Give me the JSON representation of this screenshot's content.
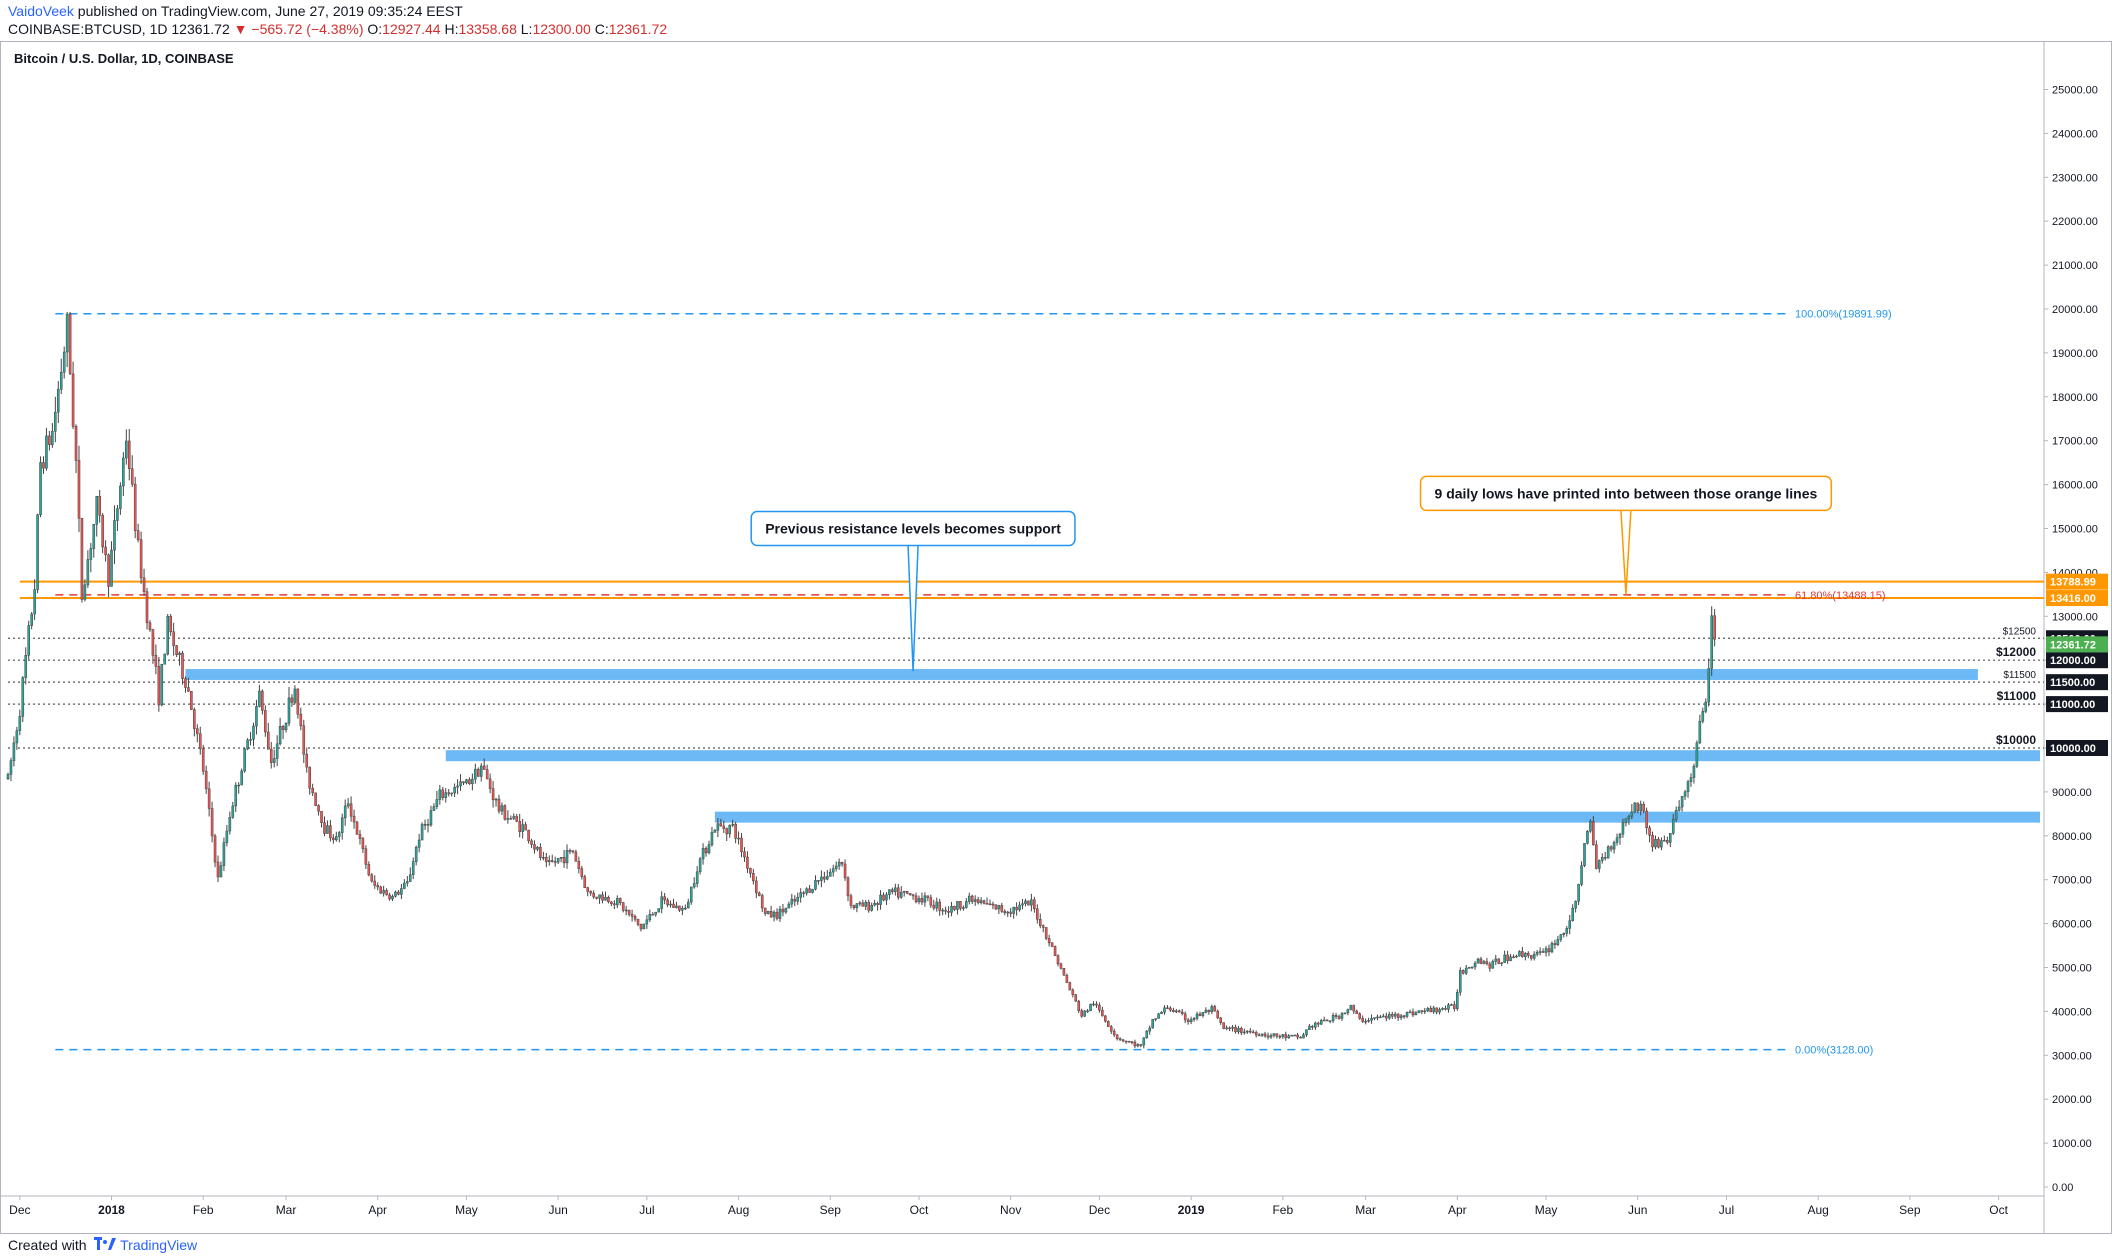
{
  "header": {
    "author": "VaidoVeek",
    "published_text": "published on TradingView.com, June 27, 2019 09:35:24 EEST",
    "symbol_line_prefix": "COINBASE:BTCUSD, 1D  12361.72",
    "change_text": "−565.72 (−4.38%)",
    "ohlc_o_label": "O:",
    "ohlc_o": "12927.44",
    "ohlc_h_label": "H:",
    "ohlc_h": "13358.68",
    "ohlc_l_label": "L:",
    "ohlc_l": "12300.00",
    "ohlc_c_label": "C:",
    "ohlc_c": "12361.72"
  },
  "footer": {
    "created_with": "Created with",
    "brand": "TradingView"
  },
  "colors": {
    "up": "#26a69a",
    "up_fill": "#26a69a",
    "down": "#ef5350",
    "fib": "#2196f3",
    "orange": "#ff9800",
    "zone": "#64b5f6",
    "red_dash": "#e53935",
    "green_price": "#4caf50"
  },
  "chart_data": {
    "type": "candlestick",
    "title": "Bitcoin / U.S. Dollar, 1D, COINBASE",
    "ylim": [
      0,
      25500
    ],
    "y_ticks": [
      0,
      1000,
      2000,
      3000,
      4000,
      5000,
      6000,
      7000,
      8000,
      9000,
      10000,
      11000,
      12000,
      13000,
      14000,
      15000,
      16000,
      17000,
      18000,
      19000,
      20000,
      21000,
      22000,
      23000,
      24000,
      25000
    ],
    "y_tick_format": "2dp",
    "x_range": [
      "2017-11-27",
      "2019-10-15"
    ],
    "x_ticks": [
      {
        "label": "Dec",
        "date": "2017-12-01",
        "bold": false
      },
      {
        "label": "2018",
        "date": "2018-01-01",
        "bold": true
      },
      {
        "label": "Feb",
        "date": "2018-02-01",
        "bold": false
      },
      {
        "label": "Mar",
        "date": "2018-03-01",
        "bold": false
      },
      {
        "label": "Apr",
        "date": "2018-04-01",
        "bold": false
      },
      {
        "label": "May",
        "date": "2018-05-01",
        "bold": false
      },
      {
        "label": "Jun",
        "date": "2018-06-01",
        "bold": false
      },
      {
        "label": "Jul",
        "date": "2018-07-01",
        "bold": false
      },
      {
        "label": "Aug",
        "date": "2018-08-01",
        "bold": false
      },
      {
        "label": "Sep",
        "date": "2018-09-01",
        "bold": false
      },
      {
        "label": "Oct",
        "date": "2018-10-01",
        "bold": false
      },
      {
        "label": "Nov",
        "date": "2018-11-01",
        "bold": false
      },
      {
        "label": "Dec",
        "date": "2018-12-01",
        "bold": false
      },
      {
        "label": "2019",
        "date": "2019-01-01",
        "bold": true
      },
      {
        "label": "Feb",
        "date": "2019-02-01",
        "bold": false
      },
      {
        "label": "Mar",
        "date": "2019-03-01",
        "bold": false
      },
      {
        "label": "Apr",
        "date": "2019-04-01",
        "bold": false
      },
      {
        "label": "May",
        "date": "2019-05-01",
        "bold": false
      },
      {
        "label": "Jun",
        "date": "2019-06-01",
        "bold": false
      },
      {
        "label": "Jul",
        "date": "2019-07-01",
        "bold": false
      },
      {
        "label": "Aug",
        "date": "2019-08-01",
        "bold": false
      },
      {
        "label": "Sep",
        "date": "2019-09-01",
        "bold": false
      },
      {
        "label": "Oct",
        "date": "2019-10-01",
        "bold": false
      }
    ],
    "price_path": [
      [
        "2017-11-27",
        9300
      ],
      [
        "2017-12-01",
        10900
      ],
      [
        "2017-12-06",
        13700
      ],
      [
        "2017-12-08",
        16500
      ],
      [
        "2017-12-12",
        17200
      ],
      [
        "2017-12-17",
        19600
      ],
      [
        "2017-12-20",
        16500
      ],
      [
        "2017-12-22",
        13500
      ],
      [
        "2017-12-27",
        15500
      ],
      [
        "2017-12-31",
        13900
      ],
      [
        "2018-01-06",
        17100
      ],
      [
        "2018-01-10",
        14500
      ],
      [
        "2018-01-17",
        11200
      ],
      [
        "2018-01-20",
        12800
      ],
      [
        "2018-01-27",
        11300
      ],
      [
        "2018-02-01",
        9500
      ],
      [
        "2018-02-06",
        7000
      ],
      [
        "2018-02-10",
        8500
      ],
      [
        "2018-02-16",
        10100
      ],
      [
        "2018-02-20",
        11200
      ],
      [
        "2018-02-24",
        9700
      ],
      [
        "2018-03-04",
        11400
      ],
      [
        "2018-03-08",
        9400
      ],
      [
        "2018-03-14",
        8200
      ],
      [
        "2018-03-18",
        7900
      ],
      [
        "2018-03-22",
        8800
      ],
      [
        "2018-03-30",
        6900
      ],
      [
        "2018-04-06",
        6600
      ],
      [
        "2018-04-11",
        6900
      ],
      [
        "2018-04-15",
        8000
      ],
      [
        "2018-04-22",
        8900
      ],
      [
        "2018-05-01",
        9200
      ],
      [
        "2018-05-06",
        9600
      ],
      [
        "2018-05-12",
        8600
      ],
      [
        "2018-05-20",
        8200
      ],
      [
        "2018-05-28",
        7300
      ],
      [
        "2018-06-06",
        7650
      ],
      [
        "2018-06-11",
        6700
      ],
      [
        "2018-06-21",
        6500
      ],
      [
        "2018-06-29",
        5900
      ],
      [
        "2018-07-06",
        6500
      ],
      [
        "2018-07-14",
        6300
      ],
      [
        "2018-07-18",
        7300
      ],
      [
        "2018-07-24",
        8200
      ],
      [
        "2018-07-30",
        8200
      ],
      [
        "2018-08-06",
        7000
      ],
      [
        "2018-08-10",
        6200
      ],
      [
        "2018-08-14",
        6200
      ],
      [
        "2018-08-20",
        6500
      ],
      [
        "2018-08-28",
        7000
      ],
      [
        "2018-09-05",
        7400
      ],
      [
        "2018-09-08",
        6400
      ],
      [
        "2018-09-14",
        6400
      ],
      [
        "2018-09-22",
        6700
      ],
      [
        "2018-10-01",
        6600
      ],
      [
        "2018-10-11",
        6300
      ],
      [
        "2018-10-18",
        6550
      ],
      [
        "2018-10-30",
        6300
      ],
      [
        "2018-11-08",
        6450
      ],
      [
        "2018-11-14",
        5600
      ],
      [
        "2018-11-19",
        4800
      ],
      [
        "2018-11-25",
        3900
      ],
      [
        "2018-11-29",
        4200
      ],
      [
        "2018-12-07",
        3400
      ],
      [
        "2018-12-15",
        3200
      ],
      [
        "2018-12-19",
        3800
      ],
      [
        "2018-12-24",
        4100
      ],
      [
        "2018-12-31",
        3800
      ],
      [
        "2019-01-08",
        4050
      ],
      [
        "2019-01-12",
        3600
      ],
      [
        "2019-01-20",
        3550
      ],
      [
        "2019-01-28",
        3450
      ],
      [
        "2019-02-07",
        3400
      ],
      [
        "2019-02-10",
        3650
      ],
      [
        "2019-02-20",
        3900
      ],
      [
        "2019-02-24",
        4100
      ],
      [
        "2019-02-27",
        3800
      ],
      [
        "2019-03-10",
        3900
      ],
      [
        "2019-03-20",
        4000
      ],
      [
        "2019-03-31",
        4100
      ],
      [
        "2019-04-02",
        4900
      ],
      [
        "2019-04-08",
        5200
      ],
      [
        "2019-04-12",
        5050
      ],
      [
        "2019-04-20",
        5300
      ],
      [
        "2019-04-30",
        5300
      ],
      [
        "2019-05-07",
        5800
      ],
      [
        "2019-05-11",
        6400
      ],
      [
        "2019-05-14",
        7900
      ],
      [
        "2019-05-16",
        8200
      ],
      [
        "2019-05-18",
        7300
      ],
      [
        "2019-05-25",
        8000
      ],
      [
        "2019-05-30",
        8650
      ],
      [
        "2019-06-02",
        8700
      ],
      [
        "2019-06-06",
        7800
      ],
      [
        "2019-06-11",
        7900
      ],
      [
        "2019-06-16",
        8900
      ],
      [
        "2019-06-19",
        9300
      ],
      [
        "2019-06-22",
        10500
      ],
      [
        "2019-06-24",
        11000
      ],
      [
        "2019-06-26",
        12900
      ],
      [
        "2019-06-27",
        12361
      ]
    ],
    "hlines": [
      {
        "name": "orange-upper",
        "price": 13788.99,
        "color": "orange",
        "style": "solid",
        "from": "2017-12-01",
        "label": "13788.99"
      },
      {
        "name": "orange-lower",
        "price": 13416.0,
        "color": "orange",
        "style": "solid",
        "from": "2017-12-01",
        "label": "13416.00"
      },
      {
        "name": "dotted-12500",
        "price": 12500,
        "color": "#555555",
        "style": "dotted",
        "from": "2017-11-27",
        "text": "$12500",
        "label": "12500.00"
      },
      {
        "name": "dotted-12000",
        "price": 12000,
        "color": "#555555",
        "style": "dotted",
        "from": "2017-11-27",
        "text": "$12000",
        "label": "12000.00",
        "bold": true
      },
      {
        "name": "dotted-11500",
        "price": 11500,
        "color": "#555555",
        "style": "dotted",
        "from": "2017-11-27",
        "text": "$11500",
        "label": "11500.00"
      },
      {
        "name": "dotted-11000",
        "price": 11000,
        "color": "#555555",
        "style": "dotted",
        "from": "2017-11-27",
        "text": "$11000",
        "label": "11000.00",
        "bold": true
      },
      {
        "name": "dotted-10000",
        "price": 10000,
        "color": "#555555",
        "style": "dotted",
        "from": "2017-11-27",
        "text": "$10000",
        "label": "10000.00",
        "bold": true
      }
    ],
    "fib_levels": [
      {
        "name": "fib-100",
        "price": 19891.99,
        "text": "100.00%(19891.99)",
        "color": "fib"
      },
      {
        "name": "fib-618",
        "price": 13488.15,
        "text": "61.80%(13488.15)",
        "color": "red_dash"
      },
      {
        "name": "fib-0",
        "price": 3128.0,
        "text": "0.00%(3128.00)",
        "color": "fib"
      }
    ],
    "zones": [
      {
        "name": "zone-11650",
        "low": 11550,
        "high": 11800,
        "from": "2018-01-26",
        "to": "2019-09-24"
      },
      {
        "name": "zone-9850",
        "low": 9700,
        "high": 9950,
        "from": "2018-04-24",
        "to": "2019-10-15"
      },
      {
        "name": "zone-8400",
        "low": 8300,
        "high": 8550,
        "from": "2018-07-24",
        "to": "2019-10-15"
      }
    ],
    "current_price": {
      "value": 12361.72,
      "label": "12361.72"
    },
    "annotations": [
      {
        "name": "callout-support",
        "text": "Previous resistance levels becomes support",
        "color": "fib",
        "anchor_date": "2018-09-29",
        "anchor_price": 11750,
        "box_date": "2018-09-29",
        "box_price": 15000
      },
      {
        "name": "callout-orange",
        "text": "9 daily lows have printed into between those orange lines",
        "color": "orange",
        "anchor_date": "2019-05-28",
        "anchor_price": 13500,
        "box_date": "2019-05-28",
        "box_price": 15800
      }
    ]
  }
}
